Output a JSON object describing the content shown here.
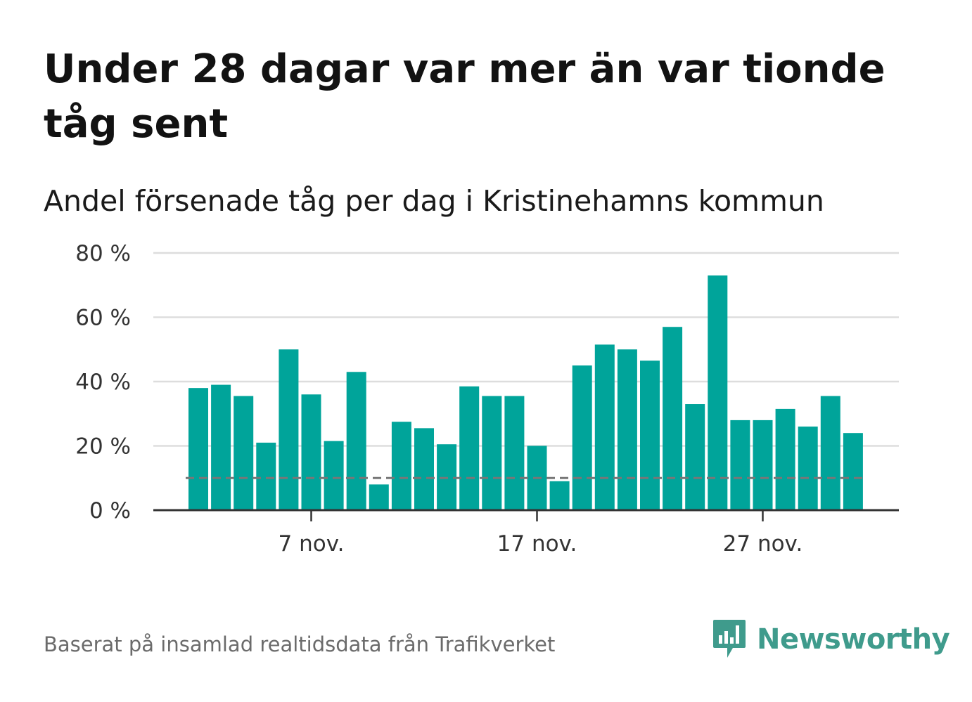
{
  "title": "Under 28 dagar var mer än var tionde tåg sent",
  "subtitle": "Andel försenade tåg per dag i Kristinehamns kommun",
  "source": "Baserat på insamlad realtidsdata från Trafikverket",
  "logo_text": "Newsworthy",
  "colors": {
    "bar": "#00a49a",
    "grid": "#dddddd",
    "axis": "#333333",
    "reference_line": "#777777",
    "logo": "#3f9b8c"
  },
  "chart_data": {
    "type": "bar",
    "x_dates": [
      "2 nov.",
      "3 nov.",
      "4 nov.",
      "5 nov.",
      "6 nov.",
      "7 nov.",
      "8 nov.",
      "9 nov.",
      "10 nov.",
      "11 nov.",
      "12 nov.",
      "13 nov.",
      "14 nov.",
      "15 nov.",
      "16 nov.",
      "17 nov.",
      "18 nov.",
      "19 nov.",
      "20 nov.",
      "21 nov.",
      "22 nov.",
      "23 nov.",
      "24 nov.",
      "25 nov.",
      "26 nov.",
      "27 nov.",
      "28 nov.",
      "29 nov.",
      "30 nov.",
      "1 dec."
    ],
    "values": [
      38,
      39,
      35.5,
      21,
      50,
      36,
      21.5,
      43,
      8,
      27.5,
      25.5,
      20.5,
      38.5,
      35.5,
      35.5,
      20,
      9,
      45,
      51.5,
      50,
      46.5,
      57,
      33,
      73,
      28,
      28,
      31.5,
      26,
      35.5,
      24
    ],
    "reference_value": 10,
    "ylim": [
      0,
      80
    ],
    "y_ticks": [
      0,
      20,
      40,
      60,
      80
    ],
    "y_tick_labels": [
      "0 %",
      "20 %",
      "40 %",
      "60 %",
      "80 %"
    ],
    "x_ticks": [
      "7 nov.",
      "17 nov.",
      "27 nov."
    ],
    "grid": true,
    "legend": "none"
  }
}
